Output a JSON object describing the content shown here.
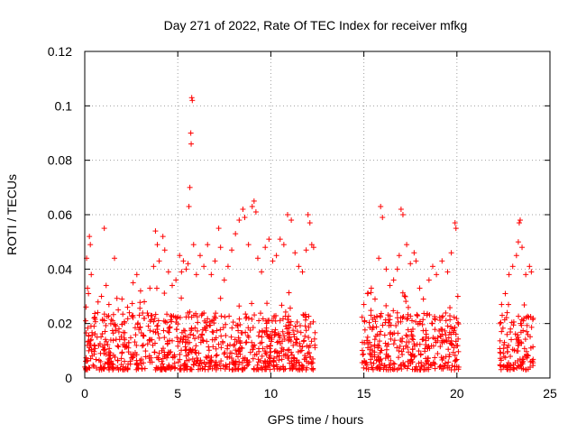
{
  "chart_data": {
    "type": "scatter",
    "title": "Day 271 of 2022, Rate Of TEC Index for receiver mfkg",
    "xlabel": "GPS time / hours",
    "ylabel": "ROTI / TECUs",
    "xlim": [
      0,
      25
    ],
    "ylim": [
      0,
      0.12
    ],
    "xticks": [
      "0",
      "5",
      "10",
      "15",
      "20",
      "25"
    ],
    "yticks": [
      "0",
      "0.02",
      "0.04",
      "0.06",
      "0.08",
      "0.1",
      "0.12"
    ],
    "grid": true,
    "marker": "+",
    "color": "#ff0000",
    "series": [
      {
        "values": [
          [
            0.05,
            0.021
          ],
          [
            0.1,
            0.044
          ],
          [
            0.15,
            0.033
          ],
          [
            0.2,
            0.031
          ],
          [
            0.25,
            0.052
          ],
          [
            0.3,
            0.049
          ],
          [
            0.35,
            0.038
          ],
          [
            0.5,
            0.019
          ],
          [
            0.7,
            0.024
          ],
          [
            0.9,
            0.03
          ],
          [
            1.05,
            0.055
          ],
          [
            1.15,
            0.034
          ],
          [
            1.3,
            0.027
          ],
          [
            1.5,
            0.021
          ],
          [
            1.6,
            0.044
          ],
          [
            1.8,
            0.025
          ],
          [
            2.0,
            0.029
          ],
          [
            2.3,
            0.026
          ],
          [
            2.6,
            0.035
          ],
          [
            2.8,
            0.038
          ],
          [
            3.0,
            0.032
          ],
          [
            3.2,
            0.028
          ],
          [
            3.5,
            0.033
          ],
          [
            3.7,
            0.041
          ],
          [
            3.8,
            0.054
          ],
          [
            3.9,
            0.049
          ],
          [
            4.0,
            0.043
          ],
          [
            4.2,
            0.052
          ],
          [
            4.3,
            0.047
          ],
          [
            4.5,
            0.039
          ],
          [
            4.7,
            0.034
          ],
          [
            4.9,
            0.036
          ],
          [
            5.1,
            0.045
          ],
          [
            5.2,
            0.039
          ],
          [
            5.3,
            0.043
          ],
          [
            5.45,
            0.04
          ],
          [
            5.55,
            0.042
          ],
          [
            5.6,
            0.063
          ],
          [
            5.65,
            0.07
          ],
          [
            5.7,
            0.09
          ],
          [
            5.72,
            0.086
          ],
          [
            5.75,
            0.103
          ],
          [
            5.78,
            0.102
          ],
          [
            5.85,
            0.049
          ],
          [
            6.0,
            0.038
          ],
          [
            6.2,
            0.045
          ],
          [
            6.4,
            0.041
          ],
          [
            6.6,
            0.049
          ],
          [
            6.8,
            0.038
          ],
          [
            7.0,
            0.043
          ],
          [
            7.2,
            0.055
          ],
          [
            7.3,
            0.048
          ],
          [
            7.5,
            0.036
          ],
          [
            7.7,
            0.041
          ],
          [
            7.9,
            0.047
          ],
          [
            8.1,
            0.053
          ],
          [
            8.3,
            0.058
          ],
          [
            8.5,
            0.062
          ],
          [
            8.6,
            0.059
          ],
          [
            8.8,
            0.049
          ],
          [
            9.0,
            0.063
          ],
          [
            9.1,
            0.065
          ],
          [
            9.2,
            0.061
          ],
          [
            9.3,
            0.044
          ],
          [
            9.5,
            0.039
          ],
          [
            9.7,
            0.048
          ],
          [
            9.9,
            0.051
          ],
          [
            10.1,
            0.043
          ],
          [
            10.3,
            0.045
          ],
          [
            10.5,
            0.051
          ],
          [
            10.7,
            0.049
          ],
          [
            10.9,
            0.06
          ],
          [
            11.1,
            0.058
          ],
          [
            11.3,
            0.046
          ],
          [
            11.5,
            0.041
          ],
          [
            11.7,
            0.039
          ],
          [
            11.9,
            0.047
          ],
          [
            12.0,
            0.06
          ],
          [
            12.1,
            0.057
          ],
          [
            12.2,
            0.049
          ],
          [
            12.3,
            0.048
          ],
          [
            15.0,
            0.027
          ],
          [
            15.2,
            0.031
          ],
          [
            15.4,
            0.033
          ],
          [
            15.6,
            0.029
          ],
          [
            15.8,
            0.044
          ],
          [
            15.9,
            0.063
          ],
          [
            16.0,
            0.059
          ],
          [
            16.2,
            0.04
          ],
          [
            16.4,
            0.034
          ],
          [
            16.6,
            0.036
          ],
          [
            16.8,
            0.04
          ],
          [
            16.9,
            0.045
          ],
          [
            17.0,
            0.062
          ],
          [
            17.1,
            0.06
          ],
          [
            17.3,
            0.049
          ],
          [
            17.5,
            0.042
          ],
          [
            17.7,
            0.046
          ],
          [
            17.8,
            0.043
          ],
          [
            18.0,
            0.033
          ],
          [
            18.2,
            0.029
          ],
          [
            18.5,
            0.036
          ],
          [
            18.7,
            0.041
          ],
          [
            18.9,
            0.038
          ],
          [
            19.2,
            0.043
          ],
          [
            19.5,
            0.039
          ],
          [
            19.7,
            0.046
          ],
          [
            19.9,
            0.057
          ],
          [
            19.95,
            0.055
          ],
          [
            20.05,
            0.03
          ],
          [
            22.4,
            0.027
          ],
          [
            22.6,
            0.031
          ],
          [
            22.8,
            0.038
          ],
          [
            23.0,
            0.041
          ],
          [
            23.2,
            0.045
          ],
          [
            23.3,
            0.05
          ],
          [
            23.35,
            0.057
          ],
          [
            23.4,
            0.058
          ],
          [
            23.5,
            0.048
          ],
          [
            23.7,
            0.038
          ],
          [
            23.9,
            0.041
          ],
          [
            24.0,
            0.039
          ]
        ]
      }
    ],
    "dense_band": {
      "segments": [
        [
          0,
          12.4
        ],
        [
          14.9,
          20.1
        ],
        [
          22.3,
          24.1
        ]
      ],
      "typical_range": [
        0.003,
        0.024
      ],
      "point_count_note": ""
    }
  }
}
